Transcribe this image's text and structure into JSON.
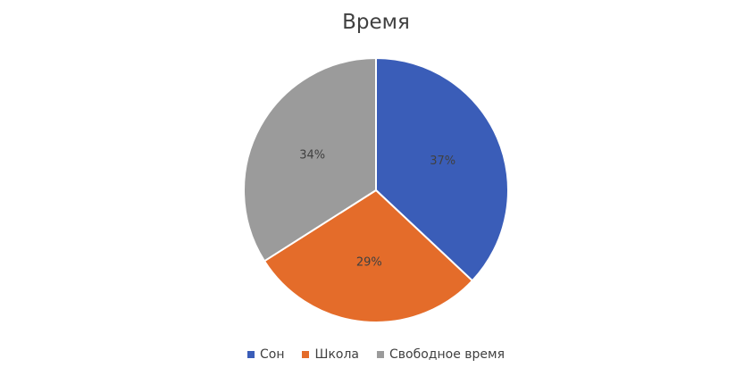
{
  "chart_data": {
    "type": "pie",
    "title": "Время",
    "categories": [
      "Сон",
      "Школа",
      "Свободное время"
    ],
    "values": [
      37,
      29,
      34
    ],
    "labels": [
      "37%",
      "29%",
      "34%"
    ],
    "colors": [
      "#3A5DB8",
      "#E46C2A",
      "#9B9B9B"
    ],
    "legend": "bottom",
    "start_angle_deg": 0,
    "direction": "clockwise"
  }
}
